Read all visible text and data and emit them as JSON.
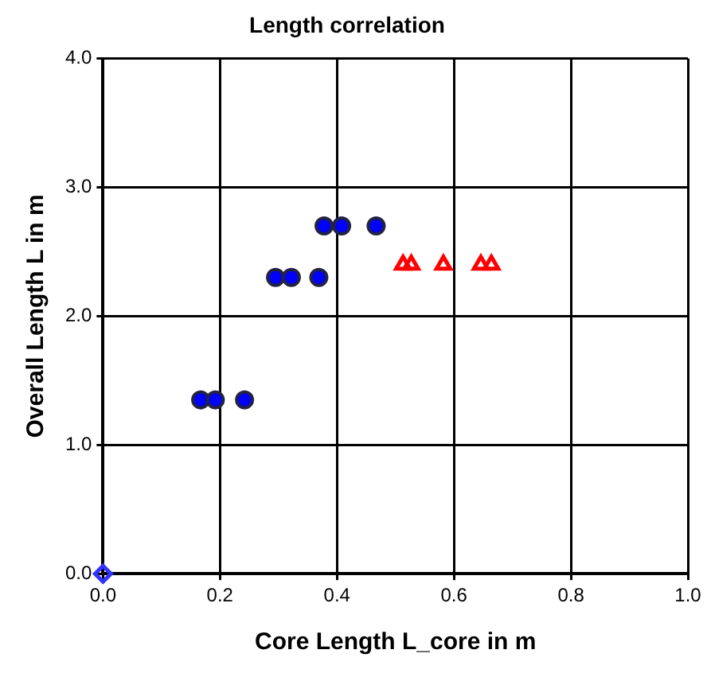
{
  "chart_data": {
    "type": "scatter",
    "title": "Length correlation",
    "xlabel": "Core Length L_core in m",
    "ylabel": "Overall Length L in m",
    "xlim": [
      0,
      1
    ],
    "ylim": [
      0,
      4
    ],
    "xticks": [
      {
        "value": 0,
        "label": "0.0"
      },
      {
        "value": 0.2,
        "label": "0.2"
      },
      {
        "value": 0.4,
        "label": "0.4"
      },
      {
        "value": 0.6,
        "label": "0.6"
      },
      {
        "value": 0.8,
        "label": "0.8"
      },
      {
        "value": 1,
        "label": "1.0"
      }
    ],
    "yticks": [
      {
        "value": 0,
        "label": "0.0"
      },
      {
        "value": 1,
        "label": "1.0"
      },
      {
        "value": 2,
        "label": "2.0"
      },
      {
        "value": 3,
        "label": "3.0"
      },
      {
        "value": 4,
        "label": "4.0"
      }
    ],
    "grid": true,
    "legend": false,
    "series": [
      {
        "color": "#0000ff",
        "marker": "circle",
        "x": [
          0.167,
          0.192,
          0.242,
          0.295,
          0.322,
          0.369,
          0.378,
          0.408,
          0.467
        ],
        "values": [
          1.35,
          1.35,
          1.35,
          2.3,
          2.3,
          2.3,
          2.7,
          2.7,
          2.7
        ]
      },
      {
        "color": "#ff0000",
        "marker": "triangle",
        "x": [
          0.513,
          0.527,
          0.582,
          0.646,
          0.664
        ],
        "values": [
          2.4,
          2.4,
          2.4,
          2.4,
          2.4
        ]
      },
      {
        "color": "#3333ff",
        "marker": "diamond",
        "x": [
          0
        ],
        "values": [
          0
        ]
      }
    ]
  }
}
